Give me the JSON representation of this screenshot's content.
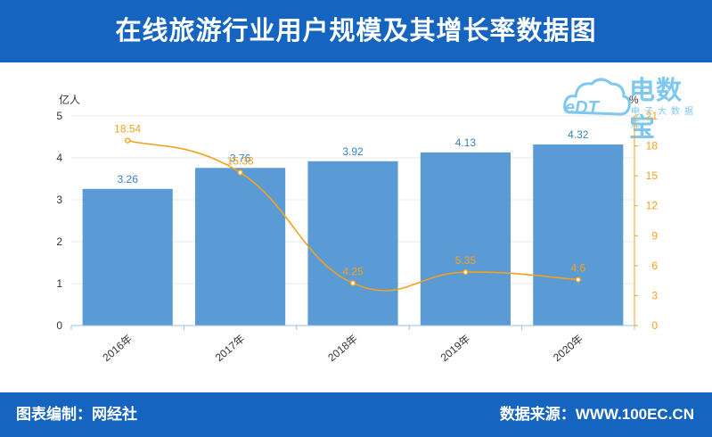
{
  "header": {
    "title": "在线旅游行业用户规模及其增长率数据图"
  },
  "footer": {
    "left": "图表编制：网经社",
    "right": "数据来源：WWW.100EC.CN"
  },
  "logo": {
    "name": "电数宝",
    "sub": "电子大数据库",
    "mark": "eDT",
    "color": "#7ec8f0"
  },
  "colors": {
    "header": "#1565c0",
    "bar": "#5b9bd5",
    "line": "#f5a11c",
    "grid": "#e8e8e8"
  },
  "chart_data": {
    "type": "bar",
    "categories": [
      "2016年",
      "2017年",
      "2018年",
      "2019年",
      "2020年"
    ],
    "series": [
      {
        "values": [
          3.26,
          3.76,
          3.92,
          4.13,
          4.32
        ],
        "type": "bar",
        "axis": "left"
      },
      {
        "values": [
          18.54,
          15.33,
          4.25,
          5.35,
          4.6
        ],
        "type": "line",
        "axis": "right"
      }
    ],
    "ylabel": "亿人",
    "y2label": "%",
    "ylim": [
      0,
      5
    ],
    "y2lim": [
      0,
      21
    ],
    "yticks": [
      0,
      1,
      2,
      3,
      4,
      5
    ],
    "y2ticks": [
      0,
      3,
      6,
      9,
      12,
      15,
      18,
      21
    ],
    "grid": true
  }
}
